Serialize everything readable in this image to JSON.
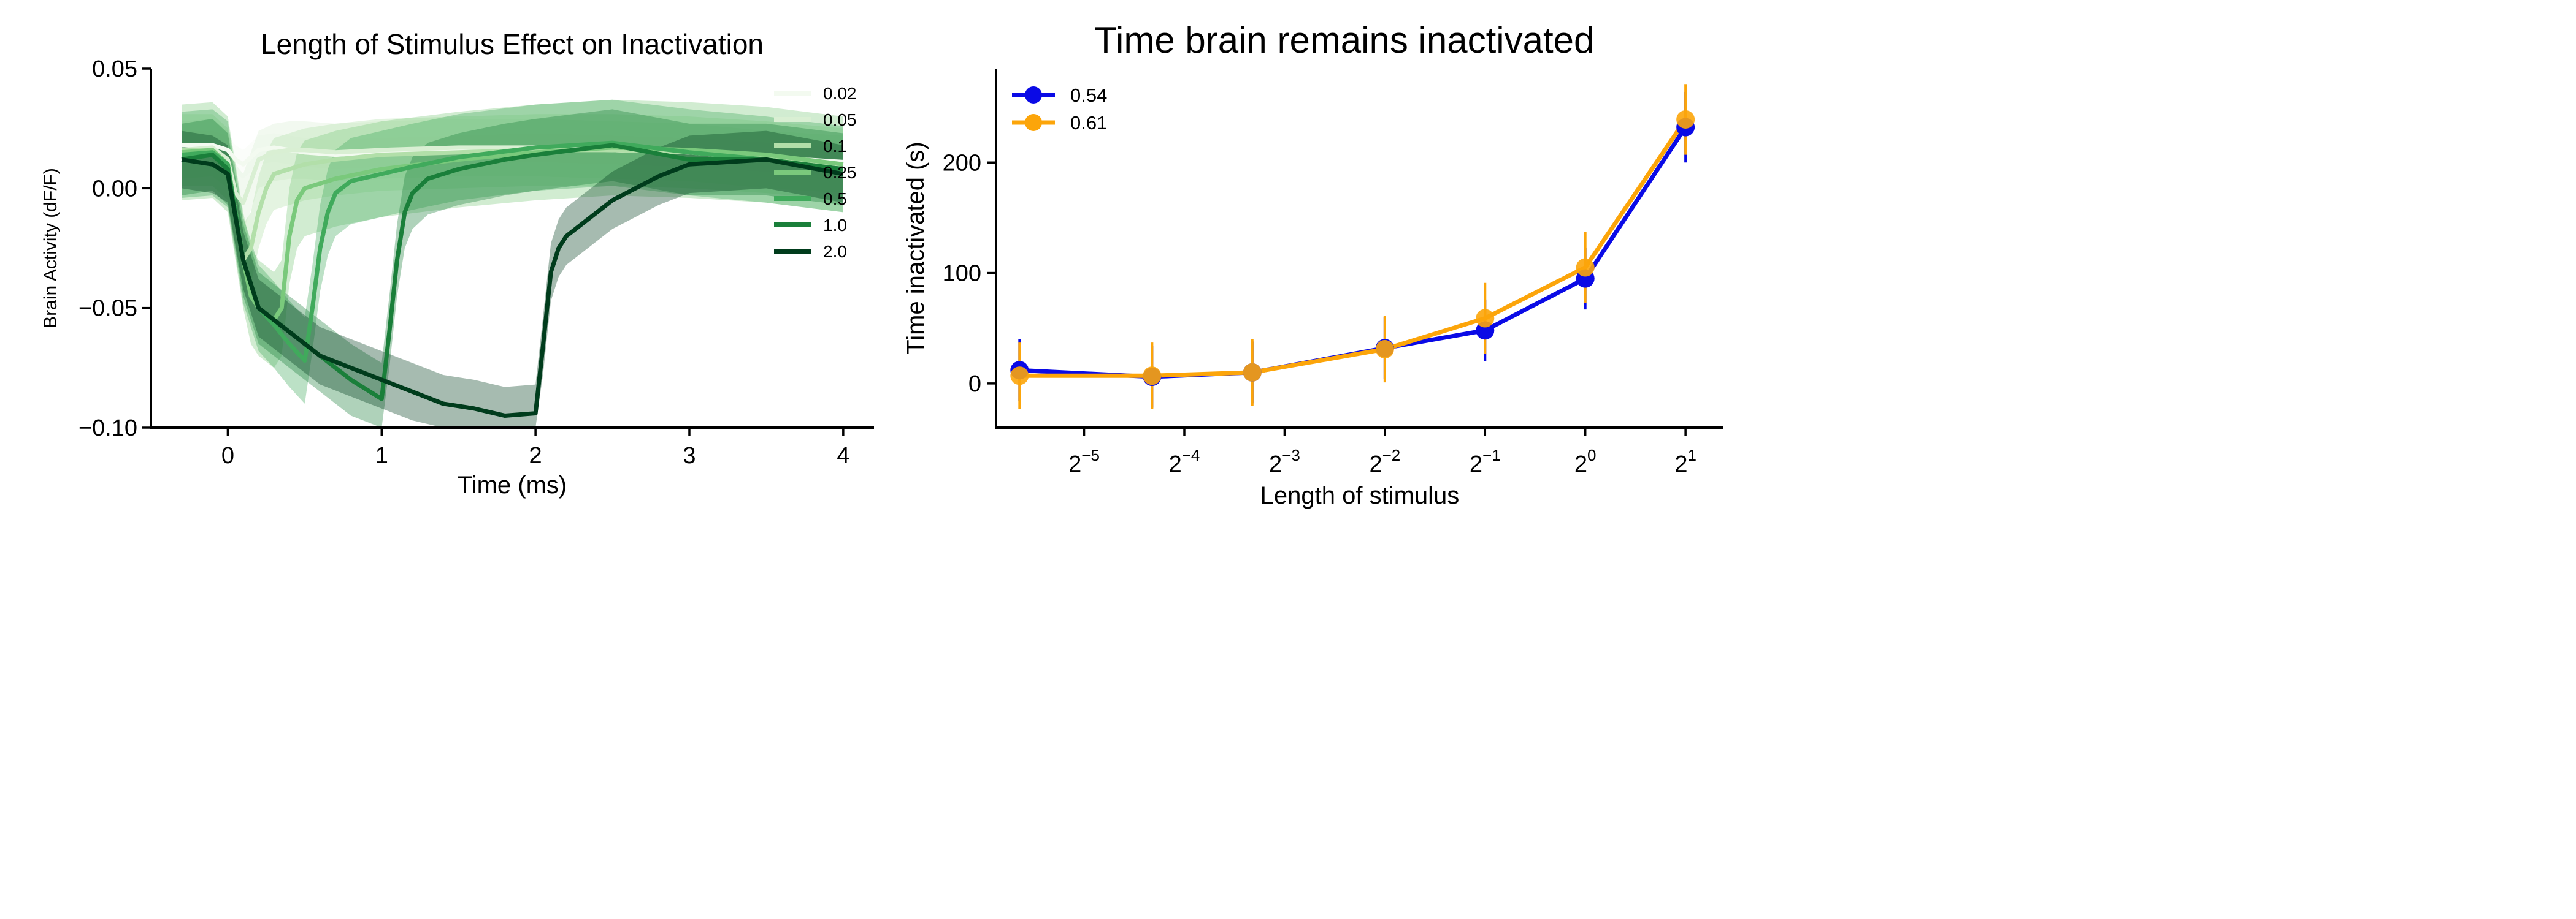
{
  "chart_data": [
    {
      "type": "line",
      "title": "Length of Stimulus Effect on Inactivation",
      "xlabel": "Time (ms)",
      "ylabel": "Brain Activity (dF/F)",
      "xlim": [
        -0.5,
        4.2
      ],
      "ylim": [
        -0.1,
        0.05
      ],
      "xticks": [
        0,
        1,
        2,
        3,
        4
      ],
      "yticks": [
        -0.1,
        -0.05,
        0.0,
        0.05
      ],
      "xtick_labels": [
        "0",
        "1",
        "2",
        "3",
        "4"
      ],
      "ytick_labels": [
        "−0.10",
        "−0.05",
        "0.00",
        "0.05"
      ],
      "legend_position": "upper-right",
      "grid": false,
      "shaded_error_band": true,
      "series": [
        {
          "name": "0.02",
          "color": "#f3faf0",
          "x": [
            -0.3,
            -0.1,
            0.0,
            0.05,
            0.1,
            0.15,
            0.2,
            0.3,
            0.4,
            0.5,
            0.7,
            1.0,
            1.5,
            2.0,
            2.5,
            3.0,
            3.5,
            4.0
          ],
          "y": [
            0.018,
            0.018,
            0.016,
            0.012,
            0.01,
            0.013,
            0.016,
            0.017,
            0.016,
            0.015,
            0.014,
            0.015,
            0.016,
            0.017,
            0.016,
            0.015,
            0.013,
            0.011
          ],
          "err": 0.006
        },
        {
          "name": "0.05",
          "color": "#d9efd3",
          "x": [
            -0.3,
            -0.1,
            0.0,
            0.05,
            0.1,
            0.15,
            0.2,
            0.3,
            0.4,
            0.5,
            0.7,
            1.0,
            1.5,
            2.0,
            2.5,
            3.0,
            3.5,
            4.0
          ],
          "y": [
            0.016,
            0.017,
            0.012,
            -0.002,
            -0.006,
            0.003,
            0.012,
            0.015,
            0.016,
            0.016,
            0.015,
            0.016,
            0.017,
            0.017,
            0.016,
            0.015,
            0.012,
            0.01
          ],
          "err": 0.012
        },
        {
          "name": "0.1",
          "color": "#b2dfa9",
          "x": [
            -0.3,
            -0.1,
            0.0,
            0.05,
            0.1,
            0.15,
            0.2,
            0.25,
            0.3,
            0.4,
            0.5,
            0.7,
            1.0,
            1.5,
            2.0,
            2.5,
            3.0,
            3.5,
            4.0
          ],
          "y": [
            0.016,
            0.016,
            0.01,
            -0.01,
            -0.03,
            -0.025,
            -0.01,
            0.0,
            0.006,
            0.008,
            0.01,
            0.012,
            0.014,
            0.015,
            0.016,
            0.016,
            0.015,
            0.013,
            0.01
          ],
          "err": 0.015
        },
        {
          "name": "0.25",
          "color": "#7ac97c",
          "x": [
            -0.3,
            -0.1,
            0.0,
            0.1,
            0.15,
            0.2,
            0.3,
            0.35,
            0.4,
            0.45,
            0.5,
            0.7,
            1.0,
            1.5,
            2.0,
            2.5,
            3.0,
            3.5,
            4.0
          ],
          "y": [
            0.015,
            0.016,
            0.01,
            -0.03,
            -0.045,
            -0.05,
            -0.055,
            -0.05,
            -0.02,
            -0.005,
            0.0,
            0.004,
            0.008,
            0.012,
            0.015,
            0.017,
            0.016,
            0.014,
            0.01
          ],
          "err": 0.02
        },
        {
          "name": "0.5",
          "color": "#40aa5c",
          "x": [
            -0.3,
            -0.1,
            0.0,
            0.1,
            0.2,
            0.3,
            0.4,
            0.5,
            0.55,
            0.6,
            0.65,
            0.7,
            0.8,
            1.0,
            1.2,
            1.5,
            2.0,
            2.5,
            3.0,
            3.5,
            4.0
          ],
          "y": [
            0.014,
            0.015,
            0.01,
            -0.03,
            -0.05,
            -0.057,
            -0.065,
            -0.072,
            -0.05,
            -0.025,
            -0.01,
            -0.002,
            0.003,
            0.006,
            0.009,
            0.013,
            0.017,
            0.019,
            0.015,
            0.012,
            0.008
          ],
          "err": 0.018
        },
        {
          "name": "1.0",
          "color": "#1a7f3a",
          "x": [
            -0.3,
            -0.1,
            0.0,
            0.1,
            0.2,
            0.4,
            0.6,
            0.8,
            1.0,
            1.05,
            1.1,
            1.15,
            1.2,
            1.3,
            1.5,
            1.8,
            2.0,
            2.5,
            3.0,
            3.5,
            4.0
          ],
          "y": [
            0.012,
            0.014,
            0.008,
            -0.03,
            -0.05,
            -0.06,
            -0.07,
            -0.08,
            -0.088,
            -0.06,
            -0.03,
            -0.01,
            -0.002,
            0.004,
            0.008,
            0.012,
            0.014,
            0.018,
            0.012,
            0.012,
            0.008
          ],
          "err": 0.015
        },
        {
          "name": "2.0",
          "color": "#003c1c",
          "x": [
            -0.3,
            -0.1,
            0.0,
            0.1,
            0.2,
            0.4,
            0.6,
            0.8,
            1.0,
            1.2,
            1.4,
            1.6,
            1.8,
            2.0,
            2.05,
            2.1,
            2.15,
            2.2,
            2.3,
            2.5,
            2.8,
            3.0,
            3.5,
            4.0
          ],
          "y": [
            0.012,
            0.01,
            0.006,
            -0.03,
            -0.05,
            -0.06,
            -0.07,
            -0.075,
            -0.08,
            -0.085,
            -0.09,
            -0.092,
            -0.095,
            -0.094,
            -0.065,
            -0.035,
            -0.025,
            -0.02,
            -0.015,
            -0.005,
            0.005,
            0.01,
            0.012,
            0.006
          ],
          "err": 0.012
        }
      ]
    },
    {
      "type": "line",
      "title": "Time brain remains inactivated",
      "xlabel": "Length of stimulus",
      "ylabel": "Time inactivated (s)",
      "x_scale": "log2",
      "x": [
        0.02,
        0.05,
        0.1,
        0.25,
        0.5,
        1.0,
        2.0
      ],
      "xlim": [
        0.017,
        2.6
      ],
      "ylim": [
        -40,
        285
      ],
      "yticks": [
        0,
        100,
        200
      ],
      "ytick_labels": [
        "0",
        "100",
        "200"
      ],
      "xtick_base": "2",
      "xticks_exponents": [
        "−5",
        "−4",
        "−3",
        "−2",
        "−1",
        "0",
        "1"
      ],
      "legend_position": "upper-left",
      "grid": false,
      "series": [
        {
          "name": "0.54",
          "color": "#0a0ae6",
          "values": [
            12,
            6,
            10,
            32,
            48,
            95,
            232
          ],
          "err": [
            28,
            28,
            28,
            28,
            28,
            28,
            32
          ]
        },
        {
          "name": "0.61",
          "color": "#fca50a",
          "values": [
            7,
            7,
            10,
            31,
            59,
            105,
            239
          ],
          "err": [
            30,
            30,
            30,
            30,
            32,
            32,
            32
          ]
        }
      ]
    }
  ]
}
